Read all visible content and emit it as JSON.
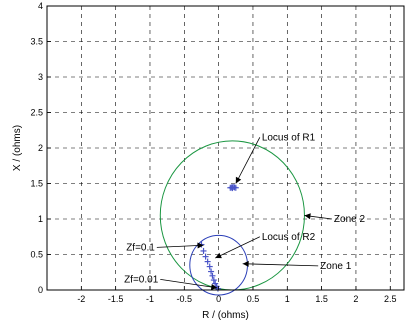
{
  "chart_data": {
    "type": "scatter",
    "xlabel": "R / (ohms)",
    "ylabel": "X / (ohms)",
    "xlim": [
      -2.5,
      2.7
    ],
    "ylim": [
      0,
      4
    ],
    "xticks": [
      -2,
      -1.5,
      -1,
      -0.5,
      0,
      0.5,
      1,
      1.5,
      2,
      2.5
    ],
    "yticks": [
      0,
      0.5,
      1,
      1.5,
      2,
      2.5,
      3,
      3.5,
      4
    ],
    "grid": true,
    "colors": {
      "zone2": "#1a9641",
      "zone1": "#2b3fb8",
      "locus": "#4a55c8",
      "axis": "#000000"
    },
    "circles": [
      {
        "label": "Zone 2",
        "center": [
          0.2,
          1.05
        ],
        "radius": 1.05
      },
      {
        "label": "Zone 1",
        "center": [
          0.0,
          0.35
        ],
        "radius": 0.42
      }
    ],
    "series": [
      {
        "name": "Locus of R1",
        "points": [
          [
            0.17,
            1.44
          ],
          [
            0.19,
            1.445
          ],
          [
            0.21,
            1.45
          ],
          [
            0.23,
            1.445
          ],
          [
            0.25,
            1.44
          ],
          [
            0.2,
            1.435
          ]
        ]
      },
      {
        "name": "Locus of R2",
        "points": [
          [
            -0.25,
            0.64
          ],
          [
            -0.22,
            0.55
          ],
          [
            -0.19,
            0.47
          ],
          [
            -0.16,
            0.4
          ],
          [
            -0.13,
            0.33
          ],
          [
            -0.11,
            0.26
          ],
          [
            -0.09,
            0.2
          ],
          [
            -0.07,
            0.14
          ],
          [
            -0.05,
            0.09
          ],
          [
            -0.03,
            0.05
          ],
          [
            -0.01,
            0.02
          ]
        ]
      }
    ],
    "annotations": [
      {
        "text": "Locus of R1",
        "point": [
          0.25,
          1.5
        ],
        "textAt": [
          0.6,
          2.15
        ]
      },
      {
        "text": "Zone 2",
        "point": [
          1.25,
          1.05
        ],
        "textAt": [
          1.65,
          1.0
        ]
      },
      {
        "text": "Locus of R2",
        "point": [
          -0.05,
          0.45
        ],
        "textAt": [
          0.6,
          0.75
        ]
      },
      {
        "text": "Zone 1",
        "point": [
          0.35,
          0.37
        ],
        "textAt": [
          1.45,
          0.34
        ]
      },
      {
        "text": "Zf=0.1",
        "point": [
          -0.22,
          0.63
        ],
        "textAt": [
          -0.9,
          0.6
        ]
      },
      {
        "text": "Zf=0.01",
        "point": [
          -0.02,
          0.03
        ],
        "textAt": [
          -0.85,
          0.15
        ]
      }
    ]
  }
}
